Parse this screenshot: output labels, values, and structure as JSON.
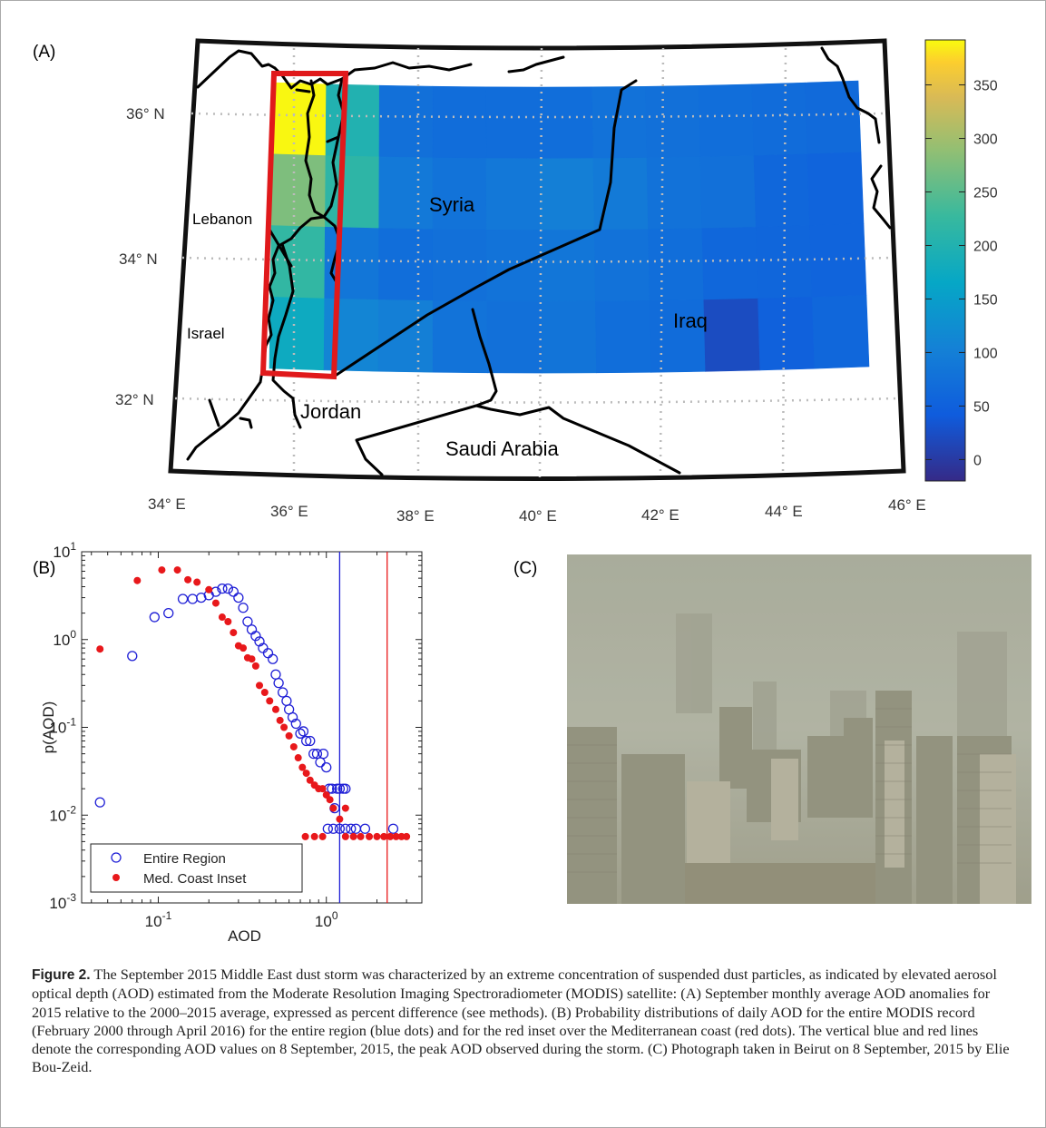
{
  "panel_labels": {
    "a": "(A)",
    "b": "(B)",
    "c": "(C)"
  },
  "map": {
    "lat_labels": [
      "36° N",
      "34° N",
      "32° N"
    ],
    "lon_labels": [
      "34° E",
      "36° E",
      "38° E",
      "40° E",
      "42° E",
      "44° E",
      "46° E"
    ],
    "places": {
      "syria": "Syria",
      "iraq": "Iraq",
      "lebanon": "Lebanon",
      "israel": "Israel",
      "jordan": "Jordan",
      "saudi_arabia": "Saudi Arabia"
    },
    "colorbar_ticks": [
      "350",
      "300",
      "250",
      "200",
      "150",
      "100",
      "50",
      "0"
    ],
    "colorbar_range": [
      -20,
      392
    ],
    "inset_color": "#e0191b",
    "colormap": "parula",
    "anomaly_grid_percent": [
      [
        390,
        200,
        75,
        70,
        70,
        72,
        78,
        75,
        72,
        68,
        65
      ],
      [
        275,
        215,
        90,
        80,
        88,
        100,
        92,
        78,
        75,
        60,
        55
      ],
      [
        220,
        85,
        72,
        75,
        80,
        85,
        78,
        72,
        60,
        58,
        55
      ],
      [
        175,
        110,
        100,
        80,
        75,
        82,
        72,
        68,
        22,
        50,
        60
      ]
    ]
  },
  "chart_data": {
    "type": "scatter",
    "x_scale": "log",
    "y_scale": "log",
    "xlim": [
      0.035,
      3.7
    ],
    "ylim": [
      0.001,
      10
    ],
    "xlabel": "AOD",
    "ylabel": "p(AOD)",
    "x_ticks": [
      "10-1",
      "100"
    ],
    "y_ticks": [
      "101",
      "100",
      "10-1",
      "10-2",
      "10-3"
    ],
    "legend_position": "bottom-left",
    "grid": false,
    "series": [
      {
        "name": "Entire Region",
        "marker": "open-circle",
        "color": "#1f1fd6",
        "points": [
          [
            0.045,
            0.014
          ],
          [
            0.07,
            0.65
          ],
          [
            0.095,
            1.8
          ],
          [
            0.115,
            2.0
          ],
          [
            0.14,
            2.9
          ],
          [
            0.16,
            2.9
          ],
          [
            0.18,
            3.0
          ],
          [
            0.2,
            3.2
          ],
          [
            0.22,
            3.5
          ],
          [
            0.24,
            3.8
          ],
          [
            0.26,
            3.8
          ],
          [
            0.28,
            3.5
          ],
          [
            0.3,
            3.0
          ],
          [
            0.32,
            2.3
          ],
          [
            0.34,
            1.6
          ],
          [
            0.36,
            1.3
          ],
          [
            0.38,
            1.1
          ],
          [
            0.4,
            0.95
          ],
          [
            0.42,
            0.8
          ],
          [
            0.45,
            0.7
          ],
          [
            0.48,
            0.6
          ],
          [
            0.5,
            0.4
          ],
          [
            0.52,
            0.32
          ],
          [
            0.55,
            0.25
          ],
          [
            0.58,
            0.2
          ],
          [
            0.6,
            0.16
          ],
          [
            0.63,
            0.13
          ],
          [
            0.66,
            0.11
          ],
          [
            0.7,
            0.085
          ],
          [
            0.73,
            0.09
          ],
          [
            0.76,
            0.07
          ],
          [
            0.8,
            0.07
          ],
          [
            0.84,
            0.05
          ],
          [
            0.88,
            0.05
          ],
          [
            0.92,
            0.04
          ],
          [
            0.96,
            0.05
          ],
          [
            1.0,
            0.035
          ],
          [
            1.04,
            0.02
          ],
          [
            1.08,
            0.02
          ],
          [
            1.12,
            0.012
          ],
          [
            1.16,
            0.02
          ],
          [
            1.2,
            0.02
          ],
          [
            1.26,
            0.02
          ],
          [
            1.3,
            0.02
          ],
          [
            1.02,
            0.007
          ],
          [
            1.1,
            0.007
          ],
          [
            1.2,
            0.007
          ],
          [
            1.3,
            0.007
          ],
          [
            1.4,
            0.007
          ],
          [
            1.5,
            0.007
          ],
          [
            1.7,
            0.007
          ],
          [
            2.5,
            0.007
          ]
        ]
      },
      {
        "name": "Med. Coast Inset",
        "marker": "filled-circle",
        "color": "#e8181b",
        "points": [
          [
            0.045,
            0.78
          ],
          [
            0.075,
            4.7
          ],
          [
            0.105,
            6.2
          ],
          [
            0.13,
            6.2
          ],
          [
            0.15,
            4.8
          ],
          [
            0.17,
            4.5
          ],
          [
            0.2,
            3.7
          ],
          [
            0.22,
            2.6
          ],
          [
            0.24,
            1.8
          ],
          [
            0.26,
            1.6
          ],
          [
            0.28,
            1.2
          ],
          [
            0.3,
            0.85
          ],
          [
            0.32,
            0.8
          ],
          [
            0.34,
            0.62
          ],
          [
            0.36,
            0.6
          ],
          [
            0.38,
            0.5
          ],
          [
            0.4,
            0.3
          ],
          [
            0.43,
            0.25
          ],
          [
            0.46,
            0.2
          ],
          [
            0.5,
            0.16
          ],
          [
            0.53,
            0.12
          ],
          [
            0.56,
            0.1
          ],
          [
            0.6,
            0.08
          ],
          [
            0.64,
            0.06
          ],
          [
            0.68,
            0.045
          ],
          [
            0.72,
            0.035
          ],
          [
            0.76,
            0.03
          ],
          [
            0.8,
            0.025
          ],
          [
            0.85,
            0.022
          ],
          [
            0.9,
            0.02
          ],
          [
            0.95,
            0.02
          ],
          [
            1.0,
            0.017
          ],
          [
            1.05,
            0.015
          ],
          [
            1.1,
            0.012
          ],
          [
            1.2,
            0.009
          ],
          [
            1.3,
            0.012
          ],
          [
            0.75,
            0.0057
          ],
          [
            0.85,
            0.0057
          ],
          [
            0.95,
            0.0057
          ],
          [
            1.3,
            0.0057
          ],
          [
            1.45,
            0.0057
          ],
          [
            1.6,
            0.0057
          ],
          [
            1.8,
            0.0057
          ],
          [
            2.0,
            0.0057
          ],
          [
            2.2,
            0.0057
          ],
          [
            2.4,
            0.0057
          ],
          [
            2.6,
            0.0057
          ],
          [
            2.8,
            0.0057
          ],
          [
            3.0,
            0.0057
          ]
        ]
      }
    ],
    "vertical_lines": [
      {
        "x": 1.2,
        "color": "#1f1fd6"
      },
      {
        "x": 2.3,
        "color": "#e8181b"
      }
    ]
  },
  "caption": {
    "label": "Figure 2.",
    "text": "The September 2015 Middle East dust storm was characterized by an extreme concentration of suspended dust particles, as indicated by elevated aerosol optical depth (AOD) estimated from the Moderate Resolution Imaging Spectroradiometer (MODIS) satellite: (A) September monthly average AOD anomalies for 2015 relative to the 2000–2015 average, expressed as percent difference (see methods). (B) Probability distributions of daily AOD for the entire MODIS record (February 2000 through April 2016) for the entire region (blue dots) and for the red inset over the Mediterranean coast (red dots). The vertical blue and red lines denote the corresponding AOD values on 8 September, 2015, the peak AOD observed during the storm. (C) Photograph taken in Beirut on 8 September, 2015 by Elie Bou-Zeid."
  }
}
